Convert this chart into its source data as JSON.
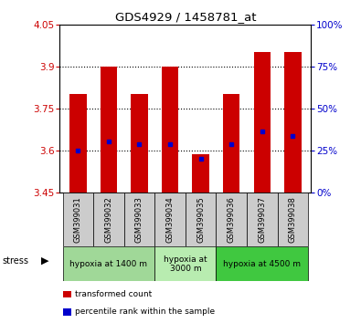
{
  "title": "GDS4929 / 1458781_at",
  "samples": [
    "GSM399031",
    "GSM399032",
    "GSM399033",
    "GSM399034",
    "GSM399035",
    "GSM399036",
    "GSM399037",
    "GSM399038"
  ],
  "bar_tops": [
    3.8,
    3.9,
    3.8,
    3.9,
    3.585,
    3.8,
    3.95,
    3.95
  ],
  "bar_base": 3.45,
  "blue_vals": [
    3.6,
    3.63,
    3.62,
    3.622,
    3.57,
    3.622,
    3.668,
    3.652
  ],
  "ylim": [
    3.45,
    4.05
  ],
  "yticks_left": [
    3.45,
    3.6,
    3.75,
    3.9,
    4.05
  ],
  "yticks_right": [
    0,
    25,
    50,
    75,
    100
  ],
  "yticks_right_vals": [
    3.45,
    3.6,
    3.75,
    3.9,
    4.05
  ],
  "bar_color": "#cc0000",
  "blue_color": "#0000cc",
  "left_tick_color": "#cc0000",
  "right_tick_color": "#0000cc",
  "bg_color": "#ffffff",
  "sample_bg": "#cccccc",
  "groups": [
    {
      "label": "hypoxia at 1400 m",
      "start": 0,
      "end": 3,
      "color": "#a0d898"
    },
    {
      "label": "hypoxia at\n3000 m",
      "start": 3,
      "end": 5,
      "color": "#b8ecb0"
    },
    {
      "label": "hypoxia at 4500 m",
      "start": 5,
      "end": 8,
      "color": "#40c840"
    }
  ],
  "stress_label": "stress",
  "legend_items": [
    {
      "color": "#cc0000",
      "label": "transformed count"
    },
    {
      "color": "#0000cc",
      "label": "percentile rank within the sample"
    }
  ],
  "bar_width": 0.55
}
